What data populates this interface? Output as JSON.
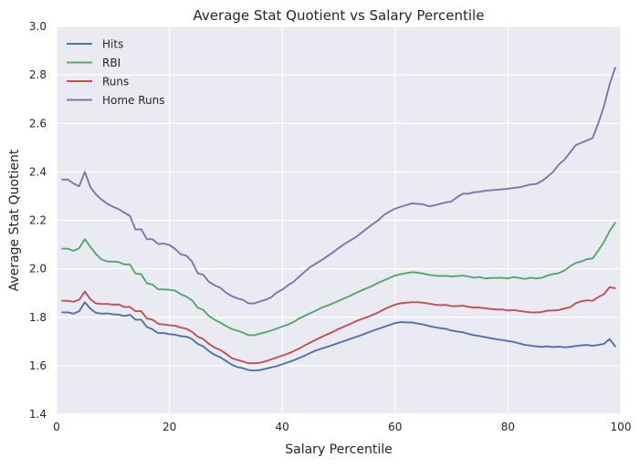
{
  "chart_data": {
    "type": "line",
    "title": "Average Stat Quotient vs Salary Percentile",
    "xlabel": "Salary Percentile",
    "ylabel": "Average Stat Quotient",
    "xlim": [
      0,
      100
    ],
    "ylim": [
      1.4,
      3.0
    ],
    "xticks": [
      0,
      20,
      40,
      60,
      80,
      100
    ],
    "yticks": [
      1.4,
      1.6,
      1.8,
      2.0,
      2.2,
      2.4,
      2.6,
      2.8,
      3.0
    ],
    "xtick_labels": [
      "0",
      "20",
      "40",
      "60",
      "80",
      "100"
    ],
    "ytick_labels": [
      "1.4",
      "1.6",
      "1.8",
      "2.0",
      "2.2",
      "2.4",
      "2.6",
      "2.8",
      "3.0"
    ],
    "grid": true,
    "legend_position": "top-left",
    "background_color": "#eaeaf2",
    "x": [
      1,
      2,
      3,
      4,
      5,
      6,
      7,
      8,
      9,
      10,
      11,
      12,
      13,
      14,
      15,
      16,
      17,
      18,
      19,
      20,
      21,
      22,
      23,
      24,
      25,
      26,
      27,
      28,
      29,
      30,
      31,
      32,
      33,
      34,
      35,
      36,
      37,
      38,
      39,
      40,
      41,
      42,
      43,
      44,
      45,
      46,
      47,
      48,
      49,
      50,
      51,
      52,
      53,
      54,
      55,
      56,
      57,
      58,
      59,
      60,
      61,
      62,
      63,
      64,
      65,
      66,
      67,
      68,
      69,
      70,
      71,
      72,
      73,
      74,
      75,
      76,
      77,
      78,
      79,
      80,
      81,
      82,
      83,
      84,
      85,
      86,
      87,
      88,
      89,
      90,
      91,
      92,
      93,
      94,
      95,
      96,
      97,
      98,
      99
    ],
    "series": [
      {
        "name": "Hits",
        "color": "#4c72b0",
        "values": [
          1.82,
          1.82,
          1.815,
          1.825,
          1.862,
          1.835,
          1.818,
          1.815,
          1.816,
          1.812,
          1.811,
          1.805,
          1.81,
          1.79,
          1.79,
          1.76,
          1.75,
          1.735,
          1.735,
          1.73,
          1.728,
          1.722,
          1.72,
          1.71,
          1.69,
          1.68,
          1.66,
          1.645,
          1.635,
          1.62,
          1.605,
          1.595,
          1.59,
          1.582,
          1.58,
          1.582,
          1.587,
          1.593,
          1.598,
          1.606,
          1.614,
          1.622,
          1.632,
          1.642,
          1.653,
          1.663,
          1.671,
          1.678,
          1.686,
          1.694,
          1.702,
          1.71,
          1.718,
          1.726,
          1.735,
          1.744,
          1.752,
          1.76,
          1.768,
          1.776,
          1.78,
          1.779,
          1.778,
          1.774,
          1.77,
          1.764,
          1.759,
          1.755,
          1.752,
          1.745,
          1.741,
          1.738,
          1.731,
          1.726,
          1.722,
          1.718,
          1.713,
          1.709,
          1.706,
          1.702,
          1.698,
          1.692,
          1.686,
          1.683,
          1.68,
          1.678,
          1.68,
          1.677,
          1.679,
          1.676,
          1.678,
          1.681,
          1.684,
          1.686,
          1.682,
          1.686,
          1.69,
          1.71,
          1.68
        ]
      },
      {
        "name": "RBI",
        "color": "#55a868",
        "values": [
          2.083,
          2.083,
          2.074,
          2.085,
          2.122,
          2.09,
          2.06,
          2.038,
          2.03,
          2.03,
          2.028,
          2.018,
          2.018,
          1.98,
          1.978,
          1.94,
          1.935,
          1.915,
          1.915,
          1.913,
          1.91,
          1.895,
          1.885,
          1.87,
          1.84,
          1.83,
          1.805,
          1.79,
          1.778,
          1.764,
          1.752,
          1.745,
          1.737,
          1.726,
          1.726,
          1.732,
          1.738,
          1.745,
          1.753,
          1.762,
          1.77,
          1.78,
          1.795,
          1.806,
          1.817,
          1.828,
          1.84,
          1.848,
          1.858,
          1.868,
          1.878,
          1.888,
          1.9,
          1.91,
          1.92,
          1.93,
          1.942,
          1.952,
          1.962,
          1.972,
          1.978,
          1.982,
          1.986,
          1.984,
          1.98,
          1.975,
          1.972,
          1.97,
          1.971,
          1.968,
          1.97,
          1.972,
          1.968,
          1.963,
          1.966,
          1.96,
          1.962,
          1.962,
          1.963,
          1.96,
          1.966,
          1.962,
          1.958,
          1.963,
          1.96,
          1.963,
          1.972,
          1.978,
          1.982,
          1.993,
          2.01,
          2.024,
          2.03,
          2.04,
          2.042,
          2.075,
          2.11,
          2.155,
          2.19
        ]
      },
      {
        "name": "Runs",
        "color": "#c44e52",
        "values": [
          1.868,
          1.868,
          1.864,
          1.872,
          1.906,
          1.874,
          1.857,
          1.855,
          1.855,
          1.852,
          1.853,
          1.842,
          1.843,
          1.825,
          1.825,
          1.795,
          1.79,
          1.773,
          1.77,
          1.767,
          1.765,
          1.758,
          1.752,
          1.74,
          1.72,
          1.71,
          1.69,
          1.675,
          1.665,
          1.65,
          1.632,
          1.624,
          1.618,
          1.61,
          1.61,
          1.612,
          1.618,
          1.626,
          1.634,
          1.642,
          1.65,
          1.66,
          1.671,
          1.684,
          1.696,
          1.708,
          1.719,
          1.73,
          1.74,
          1.752,
          1.762,
          1.772,
          1.783,
          1.792,
          1.8,
          1.81,
          1.82,
          1.832,
          1.843,
          1.852,
          1.858,
          1.86,
          1.862,
          1.862,
          1.86,
          1.856,
          1.852,
          1.85,
          1.851,
          1.846,
          1.846,
          1.848,
          1.843,
          1.84,
          1.84,
          1.837,
          1.834,
          1.832,
          1.832,
          1.828,
          1.83,
          1.826,
          1.823,
          1.82,
          1.82,
          1.822,
          1.827,
          1.828,
          1.83,
          1.836,
          1.841,
          1.858,
          1.866,
          1.87,
          1.868,
          1.883,
          1.895,
          1.924,
          1.92
        ]
      },
      {
        "name": "Home Runs",
        "color": "#8172b2",
        "values": [
          2.368,
          2.368,
          2.352,
          2.34,
          2.4,
          2.336,
          2.306,
          2.285,
          2.268,
          2.256,
          2.246,
          2.232,
          2.218,
          2.162,
          2.163,
          2.122,
          2.122,
          2.102,
          2.104,
          2.098,
          2.082,
          2.06,
          2.054,
          2.03,
          1.982,
          1.975,
          1.946,
          1.932,
          1.922,
          1.902,
          1.888,
          1.878,
          1.872,
          1.857,
          1.857,
          1.865,
          1.872,
          1.882,
          1.902,
          1.914,
          1.932,
          1.946,
          1.968,
          1.988,
          2.008,
          2.022,
          2.036,
          2.052,
          2.068,
          2.086,
          2.102,
          2.116,
          2.13,
          2.148,
          2.166,
          2.184,
          2.2,
          2.222,
          2.236,
          2.248,
          2.256,
          2.263,
          2.27,
          2.268,
          2.266,
          2.258,
          2.262,
          2.268,
          2.274,
          2.278,
          2.296,
          2.31,
          2.31,
          2.316,
          2.318,
          2.322,
          2.324,
          2.326,
          2.328,
          2.33,
          2.334,
          2.336,
          2.342,
          2.348,
          2.35,
          2.362,
          2.38,
          2.4,
          2.43,
          2.45,
          2.48,
          2.51,
          2.52,
          2.53,
          2.54,
          2.6,
          2.67,
          2.76,
          2.83
        ]
      }
    ]
  }
}
